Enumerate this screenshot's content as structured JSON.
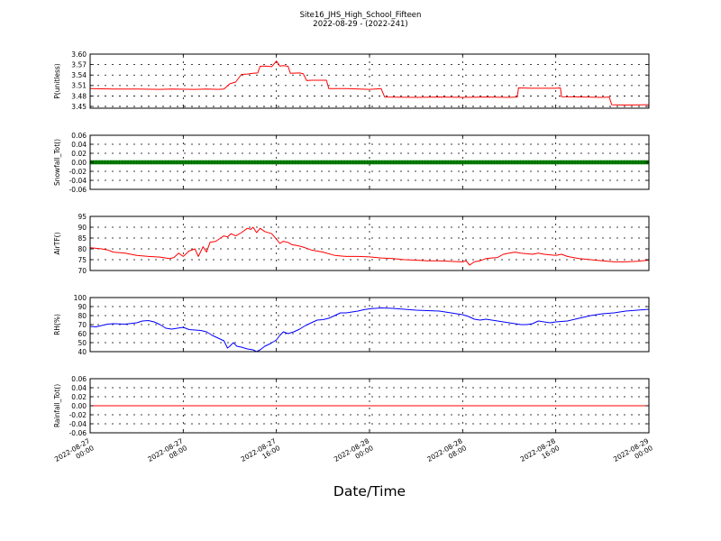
{
  "chart_data": [
    {
      "type": "line",
      "title": "Site16_JHS_High_School_Fifteen",
      "subtitle": "2022-08-29 - (2022-241)",
      "ylabel": "P(unitless)",
      "ylim": [
        3.445,
        3.6
      ],
      "yticks": [
        "3.60",
        "3.57",
        "3.54",
        "3.51",
        "3.48",
        "3.45"
      ],
      "ytick_values": [
        3.6,
        3.57,
        3.54,
        3.51,
        3.48,
        3.45
      ],
      "grid": true,
      "series": [
        {
          "color": "#ff0000",
          "points": [
            [
              0,
              3.501
            ],
            [
              2,
              3.5
            ],
            [
              4,
              3.5
            ],
            [
              6,
              3.499
            ],
            [
              7,
              3.5
            ],
            [
              9,
              3.499
            ],
            [
              10,
              3.5
            ],
            [
              11,
              3.499
            ],
            [
              11.5,
              3.5
            ],
            [
              12,
              3.515
            ],
            [
              12.5,
              3.52
            ],
            [
              13,
              3.542
            ],
            [
              13.5,
              3.543
            ],
            [
              14,
              3.545
            ],
            [
              14.4,
              3.546
            ],
            [
              14.6,
              3.565
            ],
            [
              15,
              3.566
            ],
            [
              15.6,
              3.564
            ],
            [
              16,
              3.58
            ],
            [
              16.3,
              3.566
            ],
            [
              16.6,
              3.567
            ],
            [
              17,
              3.565
            ],
            [
              17.2,
              3.545
            ],
            [
              18,
              3.546
            ],
            [
              18.3,
              3.544
            ],
            [
              18.6,
              3.524
            ],
            [
              19,
              3.525
            ],
            [
              20,
              3.525
            ],
            [
              20.3,
              3.525
            ],
            [
              20.5,
              3.501
            ],
            [
              22,
              3.501
            ],
            [
              24,
              3.499
            ],
            [
              24.5,
              3.5
            ],
            [
              25,
              3.501
            ],
            [
              25.3,
              3.477
            ],
            [
              28,
              3.476
            ],
            [
              30,
              3.477
            ],
            [
              32,
              3.476
            ],
            [
              34,
              3.477
            ],
            [
              36,
              3.476
            ],
            [
              36.7,
              3.477
            ],
            [
              36.8,
              3.503
            ],
            [
              38,
              3.502
            ],
            [
              40,
              3.502
            ],
            [
              40.4,
              3.503
            ],
            [
              40.5,
              3.478
            ],
            [
              44,
              3.476
            ],
            [
              44.6,
              3.477
            ],
            [
              44.8,
              3.455
            ],
            [
              46,
              3.454
            ],
            [
              48,
              3.455
            ]
          ]
        }
      ]
    },
    {
      "type": "line",
      "ylabel": "Snowfall_Tot()",
      "ylim": [
        -0.06,
        0.06
      ],
      "yticks": [
        "0.06",
        "0.04",
        "0.02",
        "0.00",
        "-0.02",
        "-0.04",
        "-0.06"
      ],
      "ytick_values": [
        0.06,
        0.04,
        0.02,
        0.0,
        -0.02,
        -0.04,
        -0.06
      ],
      "grid": true,
      "series": [
        {
          "color": "#008000",
          "marker": "dot",
          "points": [
            [
              0,
              0
            ],
            [
              48,
              0
            ]
          ]
        }
      ]
    },
    {
      "type": "line",
      "ylabel": "AirTF()",
      "ylim": [
        70,
        95
      ],
      "yticks": [
        "95",
        "90",
        "85",
        "80",
        "75",
        "70"
      ],
      "ytick_values": [
        95,
        90,
        85,
        80,
        75,
        70
      ],
      "grid": true,
      "series": [
        {
          "color": "#ff0000",
          "points": [
            [
              0,
              80.5
            ],
            [
              1,
              80
            ],
            [
              1.5,
              79.5
            ],
            [
              2,
              78.5
            ],
            [
              3,
              78
            ],
            [
              4,
              77
            ],
            [
              5,
              76.5
            ],
            [
              6,
              76.2
            ],
            [
              6.8,
              75.5
            ],
            [
              7.2,
              76
            ],
            [
              7.6,
              78
            ],
            [
              8,
              76.5
            ],
            [
              8.5,
              79
            ],
            [
              9,
              80
            ],
            [
              9.3,
              76.5
            ],
            [
              9.7,
              81
            ],
            [
              10,
              78.5
            ],
            [
              10.3,
              83
            ],
            [
              10.8,
              83.5
            ],
            [
              11.2,
              85
            ],
            [
              11.5,
              86
            ],
            [
              11.8,
              85.5
            ],
            [
              12.1,
              87
            ],
            [
              12.5,
              86
            ],
            [
              13,
              87.5
            ],
            [
              13.5,
              89.5
            ],
            [
              13.8,
              89
            ],
            [
              14,
              90
            ],
            [
              14.3,
              87.5
            ],
            [
              14.6,
              89.5
            ],
            [
              15,
              88
            ],
            [
              15.6,
              87
            ],
            [
              16,
              84.5
            ],
            [
              16.3,
              82.5
            ],
            [
              16.6,
              83.5
            ],
            [
              17,
              83
            ],
            [
              17.3,
              82
            ],
            [
              17.8,
              81.5
            ],
            [
              18.2,
              81
            ],
            [
              19,
              79.5
            ],
            [
              20,
              78.5
            ],
            [
              21,
              77
            ],
            [
              22,
              76.5
            ],
            [
              23,
              76.5
            ],
            [
              24,
              76.3
            ],
            [
              25,
              75.8
            ],
            [
              26,
              75.5
            ],
            [
              27,
              75
            ],
            [
              28,
              74.8
            ],
            [
              29,
              74.5
            ],
            [
              30,
              74.5
            ],
            [
              31,
              74.2
            ],
            [
              32,
              74
            ],
            [
              32.3,
              74.5
            ],
            [
              32.6,
              72.5
            ],
            [
              33,
              74
            ],
            [
              33.5,
              74.5
            ],
            [
              34,
              75.5
            ],
            [
              34.5,
              75.8
            ],
            [
              35,
              76
            ],
            [
              35.5,
              77.5
            ],
            [
              36,
              78
            ],
            [
              36.5,
              78.5
            ],
            [
              37,
              78
            ],
            [
              38,
              77.5
            ],
            [
              38.5,
              78
            ],
            [
              39,
              77.5
            ],
            [
              40,
              77
            ],
            [
              40.5,
              77.5
            ],
            [
              41,
              76.5
            ],
            [
              42,
              75.5
            ],
            [
              43,
              75
            ],
            [
              44,
              74.5
            ],
            [
              45,
              74
            ],
            [
              46,
              74
            ],
            [
              47,
              74.3
            ],
            [
              48,
              74.8
            ]
          ]
        }
      ]
    },
    {
      "type": "line",
      "ylabel": "RH(%)",
      "ylim": [
        40,
        100
      ],
      "yticks": [
        "100",
        "90",
        "80",
        "70",
        "60",
        "50",
        "40"
      ],
      "ytick_values": [
        100,
        90,
        80,
        70,
        60,
        50,
        40
      ],
      "grid": true,
      "series": [
        {
          "color": "#0000ff",
          "points": [
            [
              0,
              68
            ],
            [
              0.5,
              67.5
            ],
            [
              1,
              69
            ],
            [
              1.5,
              70.5
            ],
            [
              2,
              71
            ],
            [
              3,
              70.5
            ],
            [
              4,
              72
            ],
            [
              4.5,
              74
            ],
            [
              5,
              74.5
            ],
            [
              5.5,
              73
            ],
            [
              6,
              70
            ],
            [
              6.5,
              66
            ],
            [
              7,
              65
            ],
            [
              7.5,
              66
            ],
            [
              8,
              67
            ],
            [
              8.5,
              64.5
            ],
            [
              9,
              64
            ],
            [
              9.5,
              63.5
            ],
            [
              10,
              62
            ],
            [
              10.5,
              58
            ],
            [
              11,
              55
            ],
            [
              11.5,
              52
            ],
            [
              11.8,
              44
            ],
            [
              12,
              46
            ],
            [
              12.3,
              50
            ],
            [
              12.6,
              46
            ],
            [
              13,
              45
            ],
            [
              13.5,
              43
            ],
            [
              14,
              42
            ],
            [
              14.3,
              40
            ],
            [
              14.6,
              42
            ],
            [
              15,
              46
            ],
            [
              15.5,
              49
            ],
            [
              16,
              53
            ],
            [
              16.3,
              58
            ],
            [
              16.6,
              62
            ],
            [
              17,
              60
            ],
            [
              17.5,
              62
            ],
            [
              18,
              65
            ],
            [
              18.5,
              69
            ],
            [
              19,
              72
            ],
            [
              19.5,
              75
            ],
            [
              20,
              75.5
            ],
            [
              20.5,
              77
            ],
            [
              21,
              80
            ],
            [
              21.5,
              83
            ],
            [
              22,
              83
            ],
            [
              22.5,
              84
            ],
            [
              23,
              85
            ],
            [
              23.5,
              86.5
            ],
            [
              24,
              87.5
            ],
            [
              25,
              88.5
            ],
            [
              26,
              88
            ],
            [
              27,
              87
            ],
            [
              28,
              86
            ],
            [
              29,
              85.5
            ],
            [
              30,
              85
            ],
            [
              31,
              83
            ],
            [
              32,
              81
            ],
            [
              32.5,
              79
            ],
            [
              33,
              76
            ],
            [
              33.5,
              75
            ],
            [
              34,
              76
            ],
            [
              35,
              74
            ],
            [
              36,
              72
            ],
            [
              37,
              70
            ],
            [
              37.5,
              70
            ],
            [
              38,
              71
            ],
            [
              38.5,
              74
            ],
            [
              39,
              73
            ],
            [
              39.5,
              72
            ],
            [
              40,
              73
            ],
            [
              41,
              74
            ],
            [
              42,
              77
            ],
            [
              43,
              80
            ],
            [
              44,
              82
            ],
            [
              45,
              83
            ],
            [
              46,
              85
            ],
            [
              47,
              86
            ],
            [
              48,
              87
            ]
          ]
        }
      ]
    },
    {
      "type": "line",
      "ylabel": "Rainfall_Tot()",
      "ylim": [
        -0.06,
        0.06
      ],
      "yticks": [
        "0.06",
        "0.04",
        "0.02",
        "0.00",
        "-0.02",
        "-0.04",
        "-0.06"
      ],
      "ytick_values": [
        0.06,
        0.04,
        0.02,
        0.0,
        -0.02,
        -0.04,
        -0.06
      ],
      "grid": true,
      "series": [
        {
          "color": "#ff0000",
          "points": [
            [
              0,
              0
            ],
            [
              48,
              0
            ]
          ]
        }
      ]
    }
  ],
  "x_axis": {
    "label": "Date/Time",
    "range_hours": [
      0,
      48
    ],
    "ticks": [
      {
        "hour": 0,
        "line1": "2022-08-27",
        "line2": "00:00"
      },
      {
        "hour": 8,
        "line1": "2022-08-27",
        "line2": "08:00"
      },
      {
        "hour": 16,
        "line1": "2022-08-27",
        "line2": "16:00"
      },
      {
        "hour": 24,
        "line1": "2022-08-28",
        "line2": "00:00"
      },
      {
        "hour": 32,
        "line1": "2022-08-28",
        "line2": "08:00"
      },
      {
        "hour": 40,
        "line1": "2022-08-28",
        "line2": "16:00"
      },
      {
        "hour": 48,
        "line1": "2022-08-29",
        "line2": "00:00"
      }
    ]
  }
}
